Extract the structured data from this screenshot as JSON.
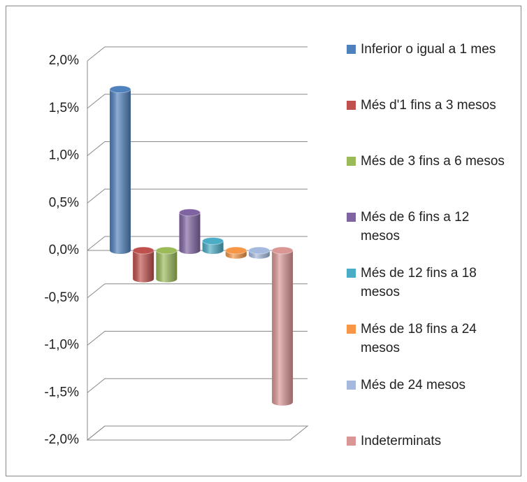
{
  "chart_data": {
    "type": "bar",
    "series": [
      {
        "name": "Inferior o igual a 1 mes",
        "color": "#4f81bd",
        "values": [
          1.7
        ]
      },
      {
        "name": "Més d'1 fins a 3 mesos",
        "color": "#c0504d",
        "values": [
          -0.3
        ]
      },
      {
        "name": "Més de 3 fins a 6 mesos",
        "color": "#9bbb59",
        "values": [
          -0.3
        ]
      },
      {
        "name": "Més de 6 fins a 12 mesos",
        "color": "#8064a2",
        "values": [
          0.4
        ]
      },
      {
        "name": "Més de 12 fins a 18 mesos",
        "color": "#4bacc6",
        "values": [
          0.1
        ]
      },
      {
        "name": "Més de 18 fins a 24 mesos",
        "color": "#f79646",
        "values": [
          -0.05
        ]
      },
      {
        "name": "Més de 24 mesos",
        "color": "#a5b9de",
        "values": [
          -0.05
        ]
      },
      {
        "name": "Indeterminats",
        "color": "#d99694",
        "values": [
          -1.6
        ]
      }
    ],
    "ylim": [
      -2,
      2
    ],
    "yticks": [
      {
        "value": 2,
        "label": "2,0%"
      },
      {
        "value": 1.5,
        "label": "1,5%"
      },
      {
        "value": 1,
        "label": "1,0%"
      },
      {
        "value": 0.5,
        "label": "0,5%"
      },
      {
        "value": 0,
        "label": "0,0%"
      },
      {
        "value": -0.5,
        "label": "-0,5%"
      },
      {
        "value": -1,
        "label": "-1,0%"
      },
      {
        "value": -1.5,
        "label": "-1,5%"
      },
      {
        "value": -2,
        "label": "-2,0%"
      }
    ],
    "grid": true,
    "legend": "right"
  }
}
